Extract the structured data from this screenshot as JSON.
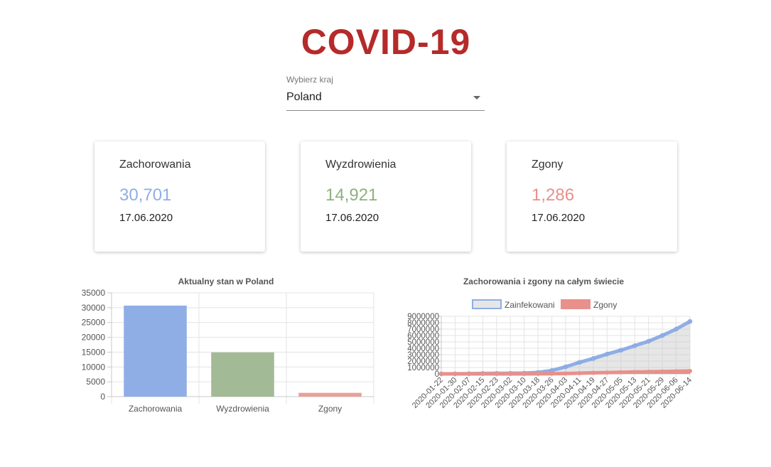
{
  "logo": {
    "text": "COVID-19",
    "color": "#b52a2a"
  },
  "country_select": {
    "label": "Wybierz kraj",
    "value": "Poland"
  },
  "cards": [
    {
      "title": "Zachorowania",
      "value": "30,701",
      "date": "17.06.2020",
      "color": "#8faee6"
    },
    {
      "title": "Wyzdrowienia",
      "value": "14,921",
      "date": "17.06.2020",
      "color": "#8fb07e"
    },
    {
      "title": "Zgony",
      "value": "1,286",
      "date": "17.06.2020",
      "color": "#e8908a"
    }
  ],
  "chart_data": [
    {
      "type": "bar",
      "title": "Aktualny stan w Poland",
      "categories": [
        "Zachorowania",
        "Wyzdrowienia",
        "Zgony"
      ],
      "values": [
        30701,
        14921,
        1286
      ],
      "colors": [
        "#8faee6",
        "#a3ba96",
        "#e8a09a"
      ],
      "ylim": [
        0,
        35000
      ],
      "yticks": [
        0,
        5000,
        10000,
        15000,
        20000,
        25000,
        30000,
        35000
      ],
      "grid": true
    },
    {
      "type": "line",
      "title": "Zachorowania i zgony na całym świecie",
      "legend": "top",
      "x_labels": [
        "2020-01-22",
        "2020-01-30",
        "2020-02-07",
        "2020-02-15",
        "2020-02-23",
        "2020-03-02",
        "2020-03-10",
        "2020-03-18",
        "2020-03-26",
        "2020-04-03",
        "2020-04-11",
        "2020-04-19",
        "2020-04-27",
        "2020-05-05",
        "2020-05-13",
        "2020-05-21",
        "2020-05-29",
        "2020-06-06",
        "2020-06-14"
      ],
      "ylim": [
        0,
        9000000
      ],
      "yticks": [
        0,
        1000000,
        2000000,
        3000000,
        4000000,
        5000000,
        6000000,
        7000000,
        8000000,
        9000000
      ],
      "series": [
        {
          "name": "Zainfekowani",
          "color": "#8faee6",
          "fill": "#e6e6e6",
          "values": [
            600,
            9900,
            34500,
            69000,
            79300,
            90300,
            119000,
            220000,
            530000,
            1100000,
            1800000,
            2400000,
            3100000,
            3700000,
            4400000,
            5100000,
            6000000,
            7000000,
            8200000
          ]
        },
        {
          "name": "Zgony",
          "color": "#e8908a",
          "fill": "#e8908a",
          "values": [
            17,
            213,
            720,
            1666,
            2618,
            3100,
            4300,
            9300,
            27000,
            59000,
            108000,
            166000,
            211000,
            256000,
            297000,
            330000,
            366000,
            400000,
            440000
          ]
        }
      ]
    }
  ]
}
